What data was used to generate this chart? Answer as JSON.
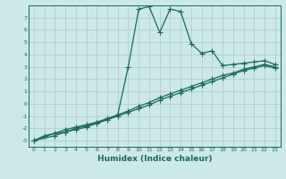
{
  "xlabel": "Humidex (Indice chaleur)",
  "ylabel": "",
  "bg_color": "#cce8e8",
  "grid_color": "#aacaca",
  "line_color": "#1a6b5a",
  "xlim": [
    -0.5,
    23.5
  ],
  "ylim": [
    -3.5,
    8.0
  ],
  "xticks": [
    0,
    1,
    2,
    3,
    4,
    5,
    6,
    7,
    8,
    9,
    10,
    11,
    12,
    13,
    14,
    15,
    16,
    17,
    18,
    19,
    20,
    21,
    22,
    23
  ],
  "yticks": [
    -3,
    -2,
    -1,
    0,
    1,
    2,
    3,
    4,
    5,
    6,
    7
  ],
  "series1_x": [
    0,
    1,
    2,
    3,
    4,
    5,
    6,
    7,
    8,
    9,
    10,
    11,
    12,
    13,
    14,
    15,
    16,
    17,
    18,
    19,
    20,
    21,
    22,
    23
  ],
  "series1_y": [
    -3.0,
    -2.6,
    -2.4,
    -2.3,
    -2.1,
    -1.9,
    -1.6,
    -1.3,
    -0.9,
    3.0,
    7.7,
    7.9,
    5.8,
    7.7,
    7.5,
    4.9,
    4.1,
    4.3,
    3.1,
    3.2,
    3.3,
    3.4,
    3.5,
    3.2
  ],
  "series2_x": [
    0,
    2,
    3,
    4,
    5,
    6,
    7,
    8,
    9,
    10,
    11,
    12,
    13,
    14,
    15,
    16,
    17,
    18,
    19,
    20,
    21,
    22,
    23
  ],
  "series2_y": [
    -3.0,
    -2.4,
    -2.1,
    -1.9,
    -1.7,
    -1.5,
    -1.2,
    -0.9,
    -0.6,
    -0.2,
    0.1,
    0.5,
    0.8,
    1.1,
    1.4,
    1.7,
    2.0,
    2.3,
    2.5,
    2.8,
    3.0,
    3.2,
    3.0
  ],
  "series3_x": [
    0,
    2,
    3,
    4,
    5,
    6,
    7,
    8,
    9,
    10,
    11,
    12,
    13,
    14,
    15,
    16,
    17,
    18,
    19,
    20,
    21,
    22,
    23
  ],
  "series3_y": [
    -3.0,
    -2.6,
    -2.3,
    -2.0,
    -1.8,
    -1.5,
    -1.3,
    -1.0,
    -0.7,
    -0.4,
    -0.1,
    0.3,
    0.6,
    0.9,
    1.2,
    1.5,
    1.8,
    2.1,
    2.4,
    2.7,
    2.9,
    3.1,
    2.9
  ],
  "marker_size": 4,
  "line_width": 0.9
}
